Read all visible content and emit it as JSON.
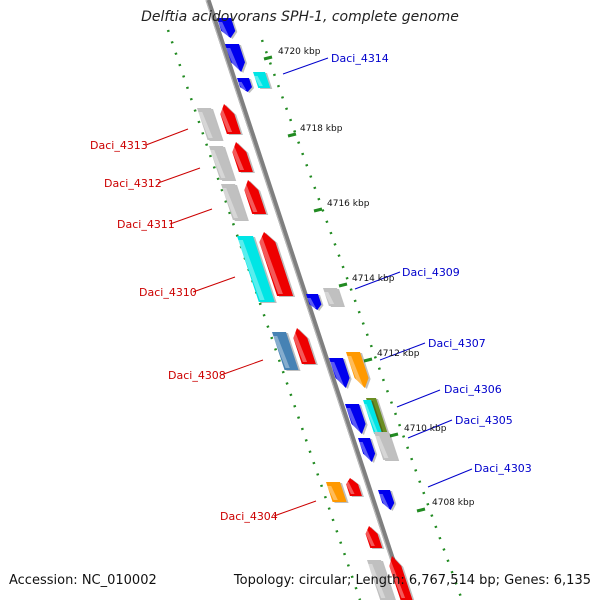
{
  "title": "Delftia acidovorans SPH-1, complete genome",
  "footer": {
    "accession": "Accession: NC_010002",
    "summary": "Topology: circular; Length: 6,767,514 bp; Genes: 6,135"
  },
  "scale_labels": [
    "4720 kbp",
    "4718 kbp",
    "4716 kbp",
    "4714 kbp",
    "4712 kbp",
    "4710 kbp",
    "4708 kbp"
  ],
  "gene_labels_reverse": [
    "Daci_4313",
    "Daci_4312",
    "Daci_4311",
    "Daci_4310",
    "Daci_4308",
    "Daci_4304"
  ],
  "gene_labels_forward": [
    "Daci_4314",
    "Daci_4309",
    "Daci_4307",
    "Daci_4306",
    "Daci_4305",
    "Daci_4303"
  ],
  "colors": {
    "backbone": "#808080",
    "forward_gene": "#0000ee",
    "reverse_gene": "#ee0000",
    "other_gene": "#c0c0c0",
    "cyan_gene": "#00e5e5",
    "orange_gene": "#ff9900",
    "steel_gene": "#4682b4",
    "olive_gene": "#6b8e23",
    "tick": "#228b22"
  }
}
